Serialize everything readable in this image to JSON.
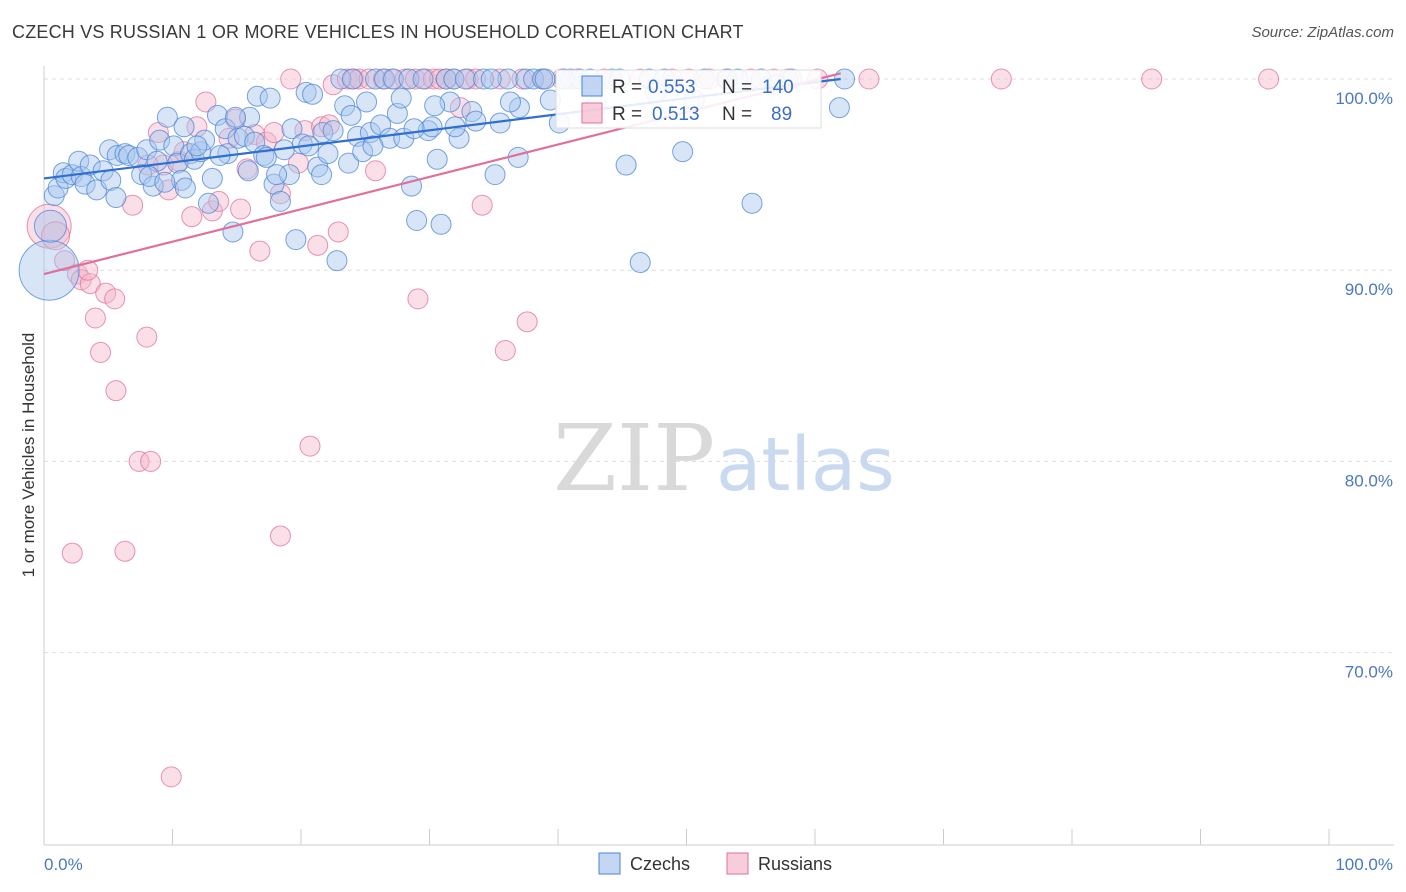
{
  "title": "CZECH VS RUSSIAN 1 OR MORE VEHICLES IN HOUSEHOLD CORRELATION CHART",
  "source": "Source: ZipAtlas.com",
  "watermark": {
    "zip": "ZIP",
    "atlas": "atlas"
  },
  "colors": {
    "czechs": "#4a86d8",
    "czechs_fill": "#a9c6ee",
    "russians": "#e0709a",
    "russians_fill": "#f5b8cc",
    "axis_text": "#4a78c2",
    "grid": "#dddddd"
  },
  "legend_box": {
    "rows": [
      {
        "r_label": "R =",
        "r_value": "0.553",
        "n_label": "N =",
        "n_value": "140"
      },
      {
        "r_label": "R =",
        "r_value": "0.513",
        "n_label": "N =",
        "n_value": "89"
      }
    ]
  },
  "chart_data": {
    "type": "scatter",
    "xlabel": "",
    "ylabel": "1 or more Vehicles in Household",
    "xlim": [
      0,
      100
    ],
    "ylim": [
      62,
      101.5
    ],
    "x_tick_labels": [
      "0.0%",
      "100.0%"
    ],
    "y_ticks": [
      70,
      80,
      90,
      100
    ],
    "y_tick_labels": [
      "70.0%",
      "80.0%",
      "90.0%",
      "100.0%"
    ],
    "grid": true,
    "legend_position": "bottom",
    "series": [
      {
        "name": "Czechs",
        "color": "#4a86d8",
        "trend": {
          "x": [
            0,
            62
          ],
          "y": [
            94.8,
            100
          ]
        },
        "points": [
          [
            0.4,
            90,
            30
          ],
          [
            0.5,
            92.3,
            16
          ],
          [
            0.8,
            93.9,
            10
          ],
          [
            1.1,
            94.3,
            10
          ],
          [
            1.5,
            95.1,
            10
          ],
          [
            1.7,
            94.8,
            10
          ],
          [
            2.2,
            95,
            10
          ],
          [
            2.7,
            95.7,
            10
          ],
          [
            2.9,
            94.9,
            10
          ],
          [
            3.2,
            94.5,
            10
          ],
          [
            3.6,
            95.5,
            10
          ],
          [
            4.1,
            94.2,
            10
          ],
          [
            4.6,
            95.2,
            10
          ],
          [
            5.2,
            94.7,
            10
          ],
          [
            5.6,
            93.8,
            10
          ],
          [
            5.1,
            96.3,
            10
          ],
          [
            5.7,
            96,
            10
          ],
          [
            6.3,
            96.1,
            10
          ],
          [
            6.6,
            96,
            10
          ],
          [
            7.3,
            95.9,
            10
          ],
          [
            7.6,
            95,
            10
          ],
          [
            8,
            96.3,
            10
          ],
          [
            8.5,
            94.4,
            10
          ],
          [
            8.8,
            95.7,
            10
          ],
          [
            9,
            96.8,
            10
          ],
          [
            9.6,
            98,
            10
          ],
          [
            10.1,
            96.5,
            10
          ],
          [
            10.4,
            95.6,
            10
          ],
          [
            10.7,
            94.7,
            10
          ],
          [
            11,
            94.3,
            10
          ],
          [
            11.4,
            96.1,
            10
          ],
          [
            11.7,
            95.8,
            10
          ],
          [
            12.2,
            96.2,
            10
          ],
          [
            12.5,
            96.8,
            10
          ],
          [
            12.8,
            93.5,
            10
          ],
          [
            13.1,
            94.8,
            10
          ],
          [
            13.5,
            98.1,
            10
          ],
          [
            14.1,
            97.4,
            10
          ],
          [
            14.3,
            96.1,
            10
          ],
          [
            14.7,
            92,
            10
          ],
          [
            15.1,
            96.9,
            10
          ],
          [
            15.6,
            97,
            10
          ],
          [
            15.9,
            95.2,
            10
          ],
          [
            16.4,
            96.7,
            10
          ],
          [
            16.6,
            99.1,
            10
          ],
          [
            17.1,
            96,
            10
          ],
          [
            17.6,
            99,
            10
          ],
          [
            17.9,
            94.5,
            10
          ],
          [
            18.4,
            93.6,
            10
          ],
          [
            18.7,
            96.3,
            10
          ],
          [
            19.1,
            95,
            10
          ],
          [
            19.3,
            97.4,
            10
          ],
          [
            19.6,
            91.6,
            10
          ],
          [
            20.1,
            96.6,
            10
          ],
          [
            20.4,
            99.3,
            10
          ],
          [
            20.9,
            99.2,
            10
          ],
          [
            21.3,
            95.4,
            10
          ],
          [
            21.7,
            97.2,
            10
          ],
          [
            22.1,
            96.1,
            10
          ],
          [
            22.5,
            97.3,
            10
          ],
          [
            22.8,
            90.5,
            10
          ],
          [
            23.1,
            100,
            10
          ],
          [
            23.4,
            98.6,
            10
          ],
          [
            23.7,
            95.6,
            10
          ],
          [
            24,
            100,
            10
          ],
          [
            24.4,
            97,
            10
          ],
          [
            24.8,
            96.2,
            10
          ],
          [
            25.1,
            98.8,
            10
          ],
          [
            25.4,
            97.2,
            10
          ],
          [
            25.8,
            100,
            10
          ],
          [
            26.2,
            97.6,
            10
          ],
          [
            26.5,
            100,
            10
          ],
          [
            26.9,
            96.9,
            10
          ],
          [
            27.2,
            100,
            10
          ],
          [
            27.5,
            98.2,
            10
          ],
          [
            28,
            96.9,
            10
          ],
          [
            28.4,
            100,
            10
          ],
          [
            28.6,
            94.4,
            10
          ],
          [
            29,
            92.6,
            10
          ],
          [
            29.5,
            100,
            10
          ],
          [
            29.9,
            97.3,
            10
          ],
          [
            30.2,
            97.5,
            10
          ],
          [
            30.6,
            95.8,
            10
          ],
          [
            30.9,
            92.4,
            10
          ],
          [
            31.3,
            100,
            10
          ],
          [
            31.6,
            98.8,
            10
          ],
          [
            31.9,
            100,
            10
          ],
          [
            32.3,
            96.9,
            10
          ],
          [
            32.8,
            100,
            10
          ],
          [
            33.3,
            98.3,
            10
          ],
          [
            33.6,
            97.8,
            10
          ],
          [
            34.2,
            100,
            10
          ],
          [
            35.1,
            95,
            10
          ],
          [
            35.5,
            97.7,
            10
          ],
          [
            36.1,
            100,
            10
          ],
          [
            36.9,
            95.9,
            10
          ],
          [
            37.5,
            100,
            10
          ],
          [
            38.1,
            100,
            10
          ],
          [
            38.8,
            100,
            10
          ],
          [
            39.4,
            98.9,
            10
          ],
          [
            40.1,
            97.7,
            10
          ],
          [
            41,
            100,
            10
          ],
          [
            41.7,
            100,
            10
          ],
          [
            42.5,
            100,
            10
          ],
          [
            44.2,
            100,
            10
          ],
          [
            45.3,
            95.5,
            10
          ],
          [
            46.4,
            90.4,
            10
          ],
          [
            47.1,
            100,
            10
          ],
          [
            48.3,
            100,
            10
          ],
          [
            49.7,
            96.2,
            10
          ],
          [
            51.4,
            100,
            10
          ],
          [
            53.2,
            100,
            10
          ],
          [
            55.1,
            93.5,
            10
          ],
          [
            55.8,
            100,
            10
          ],
          [
            58.2,
            100,
            10
          ],
          [
            61.9,
            98.5,
            10
          ],
          [
            62.3,
            100,
            10
          ],
          [
            40.5,
            100,
            10
          ],
          [
            37,
            98.5,
            10
          ],
          [
            39,
            100,
            10
          ],
          [
            28.8,
            97.4,
            10
          ],
          [
            16,
            98,
            10
          ],
          [
            8.2,
            94.9,
            10
          ],
          [
            9.4,
            94.6,
            10
          ],
          [
            10.9,
            97.5,
            10
          ],
          [
            11.9,
            96.5,
            10
          ],
          [
            13.7,
            96,
            10
          ],
          [
            14.9,
            98,
            10
          ],
          [
            17.3,
            95.9,
            10
          ],
          [
            18.1,
            95,
            10
          ],
          [
            20.6,
            96.5,
            10
          ],
          [
            21.6,
            95,
            10
          ],
          [
            23.9,
            98.1,
            10
          ],
          [
            25.6,
            96.5,
            10
          ],
          [
            27.8,
            99,
            10
          ],
          [
            30.4,
            98.6,
            10
          ],
          [
            32,
            97.5,
            10
          ],
          [
            34.8,
            100,
            10
          ],
          [
            36.3,
            98.8,
            10
          ],
          [
            43,
            98.6,
            10
          ],
          [
            44.8,
            100,
            10
          ],
          [
            47.6,
            99.3,
            10
          ],
          [
            50.6,
            98.9,
            10
          ],
          [
            54,
            100,
            10
          ],
          [
            57,
            99.7,
            10
          ]
        ]
      },
      {
        "name": "Russians",
        "color": "#e0709a",
        "trend": {
          "x": [
            0,
            62
          ],
          "y": [
            89.8,
            100.3
          ]
        },
        "points": [
          [
            0.4,
            92.3,
            22
          ],
          [
            0.9,
            91.8,
            14
          ],
          [
            1.6,
            90.5,
            10
          ],
          [
            2.6,
            89.8,
            10
          ],
          [
            2.9,
            89.5,
            10
          ],
          [
            3.6,
            89.3,
            10
          ],
          [
            4,
            87.5,
            10
          ],
          [
            4.4,
            85.7,
            10
          ],
          [
            4.8,
            88.8,
            10
          ],
          [
            5.5,
            88.5,
            10
          ],
          [
            5.6,
            83.7,
            10
          ],
          [
            6.9,
            93.4,
            10
          ],
          [
            7.4,
            80,
            10
          ],
          [
            8,
            86.5,
            10
          ],
          [
            8.3,
            80,
            10
          ],
          [
            8.9,
            97.2,
            10
          ],
          [
            9.3,
            95.5,
            10
          ],
          [
            9.7,
            94.2,
            10
          ],
          [
            10.5,
            95.7,
            10
          ],
          [
            10.9,
            96.2,
            10
          ],
          [
            11.5,
            92.8,
            10
          ],
          [
            11.9,
            97.5,
            10
          ],
          [
            12.6,
            98.8,
            10
          ],
          [
            13.1,
            93.1,
            10
          ],
          [
            13.6,
            93.6,
            10
          ],
          [
            14.4,
            96.9,
            10
          ],
          [
            14.9,
            97.9,
            10
          ],
          [
            15.3,
            93.2,
            10
          ],
          [
            15.8,
            95.3,
            10
          ],
          [
            16.4,
            97.1,
            10
          ],
          [
            16.8,
            91,
            10
          ],
          [
            17.3,
            96.7,
            10
          ],
          [
            17.9,
            97.2,
            10
          ],
          [
            18.4,
            94,
            10
          ],
          [
            19.2,
            100,
            10
          ],
          [
            19.8,
            95.6,
            10
          ],
          [
            20.3,
            97.3,
            10
          ],
          [
            20.7,
            80.8,
            10
          ],
          [
            21.3,
            91.3,
            10
          ],
          [
            21.6,
            97.5,
            10
          ],
          [
            22.2,
            97.6,
            10
          ],
          [
            22.5,
            99.7,
            10
          ],
          [
            22.9,
            92,
            10
          ],
          [
            23.6,
            100,
            10
          ],
          [
            24.1,
            100,
            10
          ],
          [
            24.5,
            100,
            10
          ],
          [
            25.3,
            100,
            10
          ],
          [
            25.8,
            95.2,
            10
          ],
          [
            26.4,
            100,
            10
          ],
          [
            27.1,
            100,
            10
          ],
          [
            28.1,
            100,
            10
          ],
          [
            28.9,
            100,
            10
          ],
          [
            29.1,
            88.5,
            10
          ],
          [
            29.7,
            100,
            10
          ],
          [
            30.3,
            100,
            10
          ],
          [
            30.8,
            100,
            10
          ],
          [
            31.3,
            100,
            10
          ],
          [
            31.9,
            100,
            10
          ],
          [
            32.4,
            98.5,
            10
          ],
          [
            33,
            100,
            10
          ],
          [
            33.6,
            100,
            10
          ],
          [
            34.1,
            93.4,
            10
          ],
          [
            35.5,
            100,
            10
          ],
          [
            35.9,
            85.8,
            10
          ],
          [
            37.2,
            100,
            10
          ],
          [
            37.6,
            87.3,
            10
          ],
          [
            38.8,
            100,
            10
          ],
          [
            40.3,
            100,
            10
          ],
          [
            41.5,
            100,
            10
          ],
          [
            43.6,
            100,
            10
          ],
          [
            46.4,
            100,
            10
          ],
          [
            48.9,
            100,
            10
          ],
          [
            50.2,
            100,
            10
          ],
          [
            51.8,
            100,
            10
          ],
          [
            53.1,
            100,
            10
          ],
          [
            55,
            100,
            10
          ],
          [
            56.8,
            100,
            10
          ],
          [
            57.9,
            100,
            10
          ],
          [
            60.2,
            100,
            10
          ],
          [
            64.2,
            100,
            10
          ],
          [
            74.5,
            100,
            10
          ],
          [
            86.2,
            100,
            10
          ],
          [
            95.3,
            100,
            10
          ],
          [
            2.2,
            75.2,
            10
          ],
          [
            6.3,
            75.3,
            10
          ],
          [
            18.4,
            76.1,
            10
          ],
          [
            9.9,
            63.5,
            10
          ],
          [
            3.4,
            90,
            10
          ],
          [
            8.1,
            95.5,
            10
          ]
        ]
      }
    ]
  },
  "bottom_legend": [
    {
      "label": "Czechs"
    },
    {
      "label": "Russians"
    }
  ]
}
